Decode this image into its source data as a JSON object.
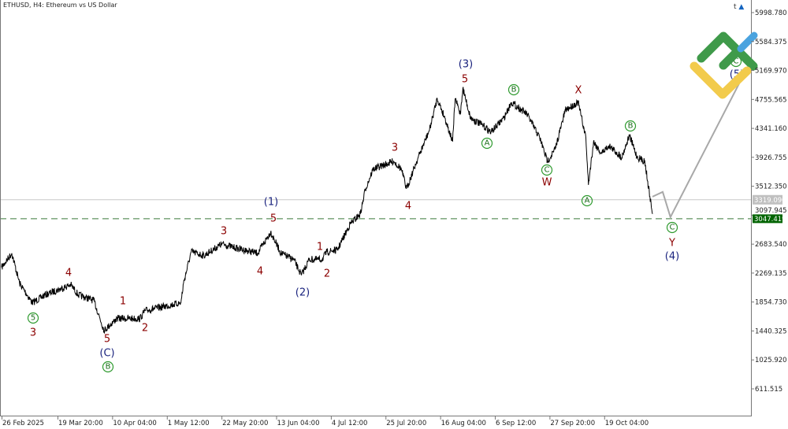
{
  "header": {
    "title": "ETHUSD, H4:  Ethereum vs US Dollar"
  },
  "toolbar": {
    "trade_icon": "t",
    "academy_icon": "graduation-cap-icon"
  },
  "colors": {
    "price_line": "#000000",
    "projection": "#a8a8a8",
    "current_price_line": "#c8c8c8",
    "target_line": "#3a7a3a",
    "target_tag": "#006400",
    "current_tag": "#c0c0c0",
    "wave_minor": "#8b0000",
    "wave_intermediate": "#1a237e",
    "wave_minute": "#2e9a2e",
    "logo_green": "#3f9a4a",
    "logo_yellow": "#f2cb4c",
    "logo_blue": "#4aa3df"
  },
  "chart_data": {
    "type": "line",
    "symbol": "ETHUSD",
    "timeframe": "H4",
    "ylim": [
      400,
      6150
    ],
    "y_ticks": [
      "5998.780",
      "5584.375",
      "5169.970",
      "4755.565",
      "4341.160",
      "3926.755",
      "3512.350",
      "3097.945",
      "2683.540",
      "2269.135",
      "1854.730",
      "1440.325",
      "1025.920",
      "611.515"
    ],
    "x_ticks": [
      {
        "label": "26 Feb 2025",
        "date": "2025-02-26T00:00"
      },
      {
        "label": "19 Mar 20:00",
        "date": "2025-03-19T20:00"
      },
      {
        "label": "10 Apr 04:00",
        "date": "2025-04-10T04:00"
      },
      {
        "label": "1 May 12:00",
        "date": "2025-05-01T12:00"
      },
      {
        "label": "22 May 20:00",
        "date": "2025-05-22T20:00"
      },
      {
        "label": "13 Jun 04:00",
        "date": "2025-06-13T04:00"
      },
      {
        "label": "4 Jul 12:00",
        "date": "2025-07-04T12:00"
      },
      {
        "label": "25 Jul 20:00",
        "date": "2025-07-25T20:00"
      },
      {
        "label": "16 Aug 04:00",
        "date": "2025-08-16T04:00"
      },
      {
        "label": "6 Sep 12:00",
        "date": "2025-09-06T12:00"
      },
      {
        "label": "27 Sep 20:00",
        "date": "2025-09-27T20:00"
      },
      {
        "label": "19 Oct 04:00",
        "date": "2025-10-19T04:00"
      }
    ],
    "current_price": "3319.090",
    "target_price": "3047.419",
    "series": [
      {
        "points": [
          [
            "2025-02-26",
            2350
          ],
          [
            "2025-03-02",
            2553
          ],
          [
            "2025-03-05",
            2125
          ],
          [
            "2025-03-10",
            1843
          ],
          [
            "2025-03-15",
            1956
          ],
          [
            "2025-03-25",
            2102
          ],
          [
            "2025-03-28",
            1956
          ],
          [
            "2025-04-03",
            1877
          ],
          [
            "2025-04-07",
            1449
          ],
          [
            "2025-04-12",
            1618
          ],
          [
            "2025-04-21",
            1618
          ],
          [
            "2025-04-23",
            1731
          ],
          [
            "2025-05-07",
            1843
          ],
          [
            "2025-05-08",
            2125
          ],
          [
            "2025-05-11",
            2575
          ],
          [
            "2025-05-16",
            2519
          ],
          [
            "2025-05-23",
            2688
          ],
          [
            "2025-05-28",
            2632
          ],
          [
            "2025-06-06",
            2553
          ],
          [
            "2025-06-11",
            2857
          ],
          [
            "2025-06-15",
            2553
          ],
          [
            "2025-06-20",
            2463
          ],
          [
            "2025-06-23",
            2238
          ],
          [
            "2025-06-26",
            2463
          ],
          [
            "2025-07-01",
            2463
          ],
          [
            "2025-07-03",
            2575
          ],
          [
            "2025-07-07",
            2598
          ],
          [
            "2025-07-12",
            2970
          ],
          [
            "2025-07-16",
            3116
          ],
          [
            "2025-07-18",
            3476
          ],
          [
            "2025-07-21",
            3758
          ],
          [
            "2025-07-29",
            3870
          ],
          [
            "2025-08-01",
            3758
          ],
          [
            "2025-08-03",
            3476
          ],
          [
            "2025-08-07",
            3870
          ],
          [
            "2025-08-12",
            4321
          ],
          [
            "2025-08-15",
            4771
          ],
          [
            "2025-08-18",
            4490
          ],
          [
            "2025-08-21",
            4152
          ],
          [
            "2025-08-22",
            4771
          ],
          [
            "2025-08-24",
            4546
          ],
          [
            "2025-08-25",
            4918
          ],
          [
            "2025-08-28",
            4490
          ],
          [
            "2025-09-02",
            4377
          ],
          [
            "2025-09-05",
            4287
          ],
          [
            "2025-09-10",
            4490
          ],
          [
            "2025-09-13",
            4715
          ],
          [
            "2025-09-19",
            4546
          ],
          [
            "2025-09-24",
            4208
          ],
          [
            "2025-09-27",
            3870
          ],
          [
            "2025-09-30",
            4039
          ],
          [
            "2025-10-04",
            4602
          ],
          [
            "2025-10-09",
            4715
          ],
          [
            "2025-10-12",
            4208
          ],
          [
            "2025-10-13",
            3532
          ],
          [
            "2025-10-15",
            4152
          ],
          [
            "2025-10-18",
            3983
          ],
          [
            "2025-10-21",
            4096
          ],
          [
            "2025-10-26",
            3927
          ],
          [
            "2025-10-29",
            4242
          ],
          [
            "2025-11-01",
            3927
          ],
          [
            "2025-11-04",
            3870
          ],
          [
            "2025-11-06",
            3363
          ],
          [
            "2025-11-07",
            3116
          ]
        ]
      }
    ],
    "projection": [
      [
        "2025-11-07",
        3363
      ],
      [
        "2025-11-11",
        3431
      ],
      [
        "2025-11-14",
        3071
      ],
      [
        "2025-12-11",
        4997
      ]
    ],
    "wave_labels": [
      {
        "text": "3",
        "degree": "minor"
      },
      {
        "text": "4",
        "degree": "minor"
      },
      {
        "text": "1",
        "degree": "minor"
      },
      {
        "text": "5",
        "degree": "minor"
      },
      {
        "text": "2",
        "degree": "minor"
      },
      {
        "text": "3",
        "degree": "minor"
      },
      {
        "text": "5",
        "degree": "minor"
      },
      {
        "text": "4",
        "degree": "minor"
      },
      {
        "text": "1",
        "degree": "minor"
      },
      {
        "text": "2",
        "degree": "minor"
      },
      {
        "text": "3",
        "degree": "minor"
      },
      {
        "text": "4",
        "degree": "minor"
      },
      {
        "text": "5",
        "degree": "minor"
      },
      {
        "text": "W",
        "degree": "minor"
      },
      {
        "text": "X",
        "degree": "minor"
      },
      {
        "text": "Y",
        "degree": "minor"
      },
      {
        "text": "(C)",
        "degree": "intermediate"
      },
      {
        "text": "(1)",
        "degree": "intermediate"
      },
      {
        "text": "(2)",
        "degree": "intermediate"
      },
      {
        "text": "(3)",
        "degree": "intermediate"
      },
      {
        "text": "(4)",
        "degree": "intermediate"
      },
      {
        "text": "(5)",
        "degree": "intermediate"
      },
      {
        "text": "5",
        "degree": "minute"
      },
      {
        "text": "B",
        "degree": "minute"
      },
      {
        "text": "A",
        "degree": "minute"
      },
      {
        "text": "B",
        "degree": "minute"
      },
      {
        "text": "C",
        "degree": "minute"
      },
      {
        "text": "A",
        "degree": "minute"
      },
      {
        "text": "B",
        "degree": "minute"
      },
      {
        "text": "C",
        "degree": "minute"
      },
      {
        "text": "C",
        "degree": "minute"
      }
    ]
  }
}
